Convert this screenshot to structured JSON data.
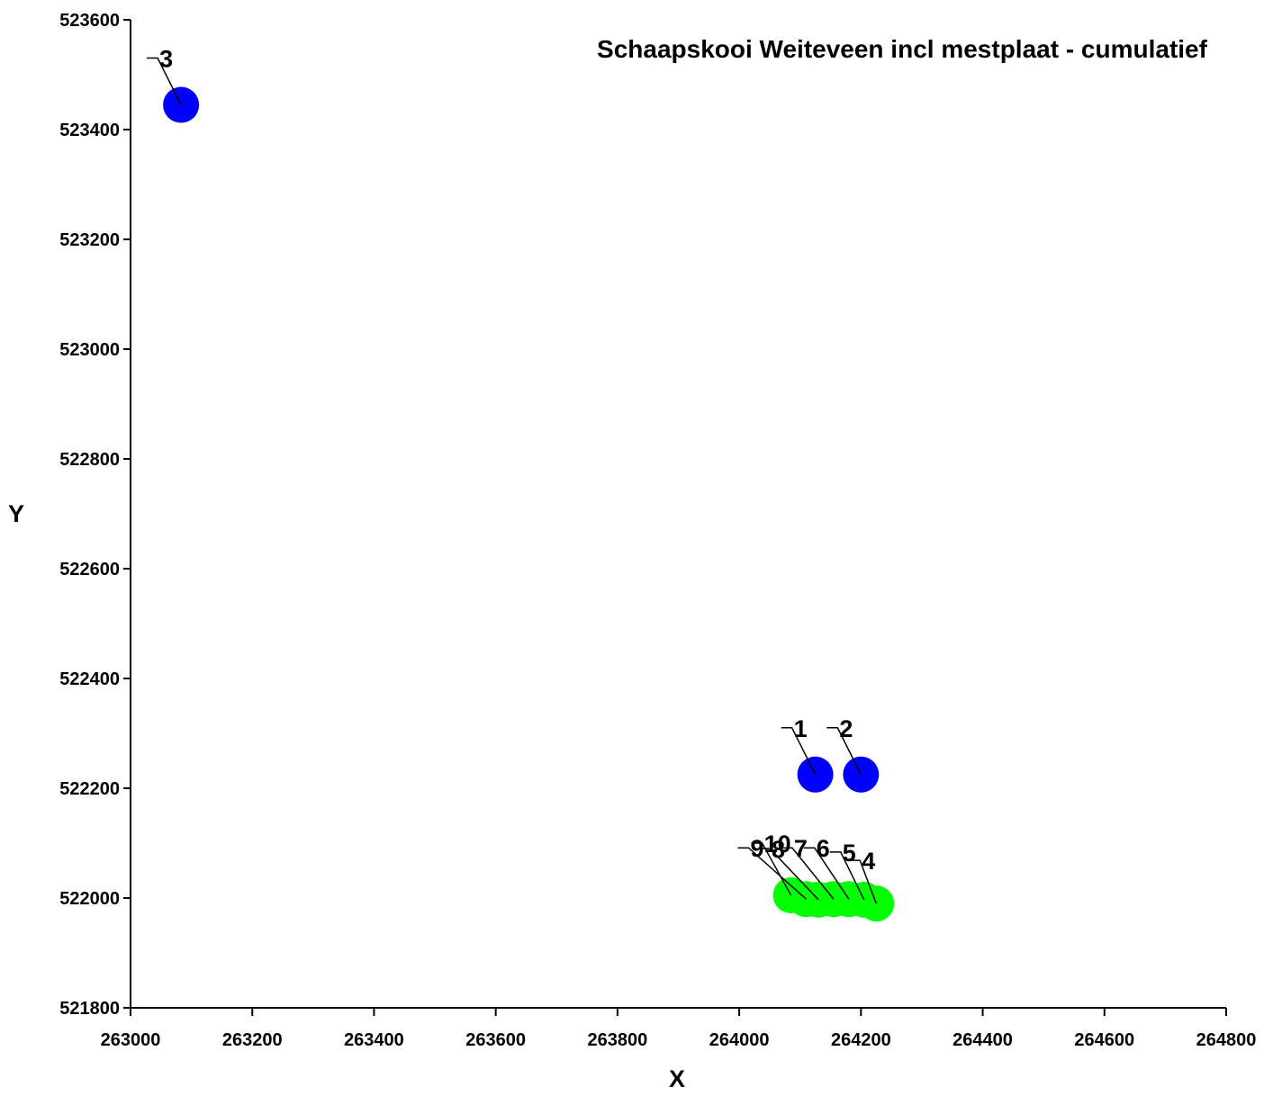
{
  "chart_data": {
    "type": "scatter",
    "title": "Schaapskooi Weiteveen incl mestplaat - cumulatief",
    "xlabel": "X",
    "ylabel": "Y",
    "xlim": [
      263000,
      264800
    ],
    "ylim": [
      521800,
      523600
    ],
    "xticks": [
      263000,
      263200,
      263400,
      263600,
      263800,
      264000,
      264200,
      264400,
      264600,
      264800
    ],
    "yticks": [
      521800,
      522000,
      522200,
      522400,
      522600,
      522800,
      523000,
      523200,
      523400,
      523600
    ],
    "grid": false,
    "legend": "none",
    "series": [
      {
        "color": "#0000ff",
        "points": [
          {
            "label": "1",
            "x": 264125,
            "y": 522225
          },
          {
            "label": "2",
            "x": 264200,
            "y": 522225
          },
          {
            "label": "3",
            "x": 263083,
            "y": 523445
          }
        ]
      },
      {
        "color": "#00ff00",
        "points": [
          {
            "label": "4",
            "x": 264225,
            "y": 521990
          },
          {
            "label": "5",
            "x": 264205,
            "y": 521997
          },
          {
            "label": "6",
            "x": 264180,
            "y": 521998
          },
          {
            "label": "7",
            "x": 264155,
            "y": 521998
          },
          {
            "label": "8",
            "x": 264130,
            "y": 521997
          },
          {
            "label": "9",
            "x": 264110,
            "y": 521998
          },
          {
            "label": "10",
            "x": 264085,
            "y": 522005
          }
        ]
      }
    ]
  }
}
